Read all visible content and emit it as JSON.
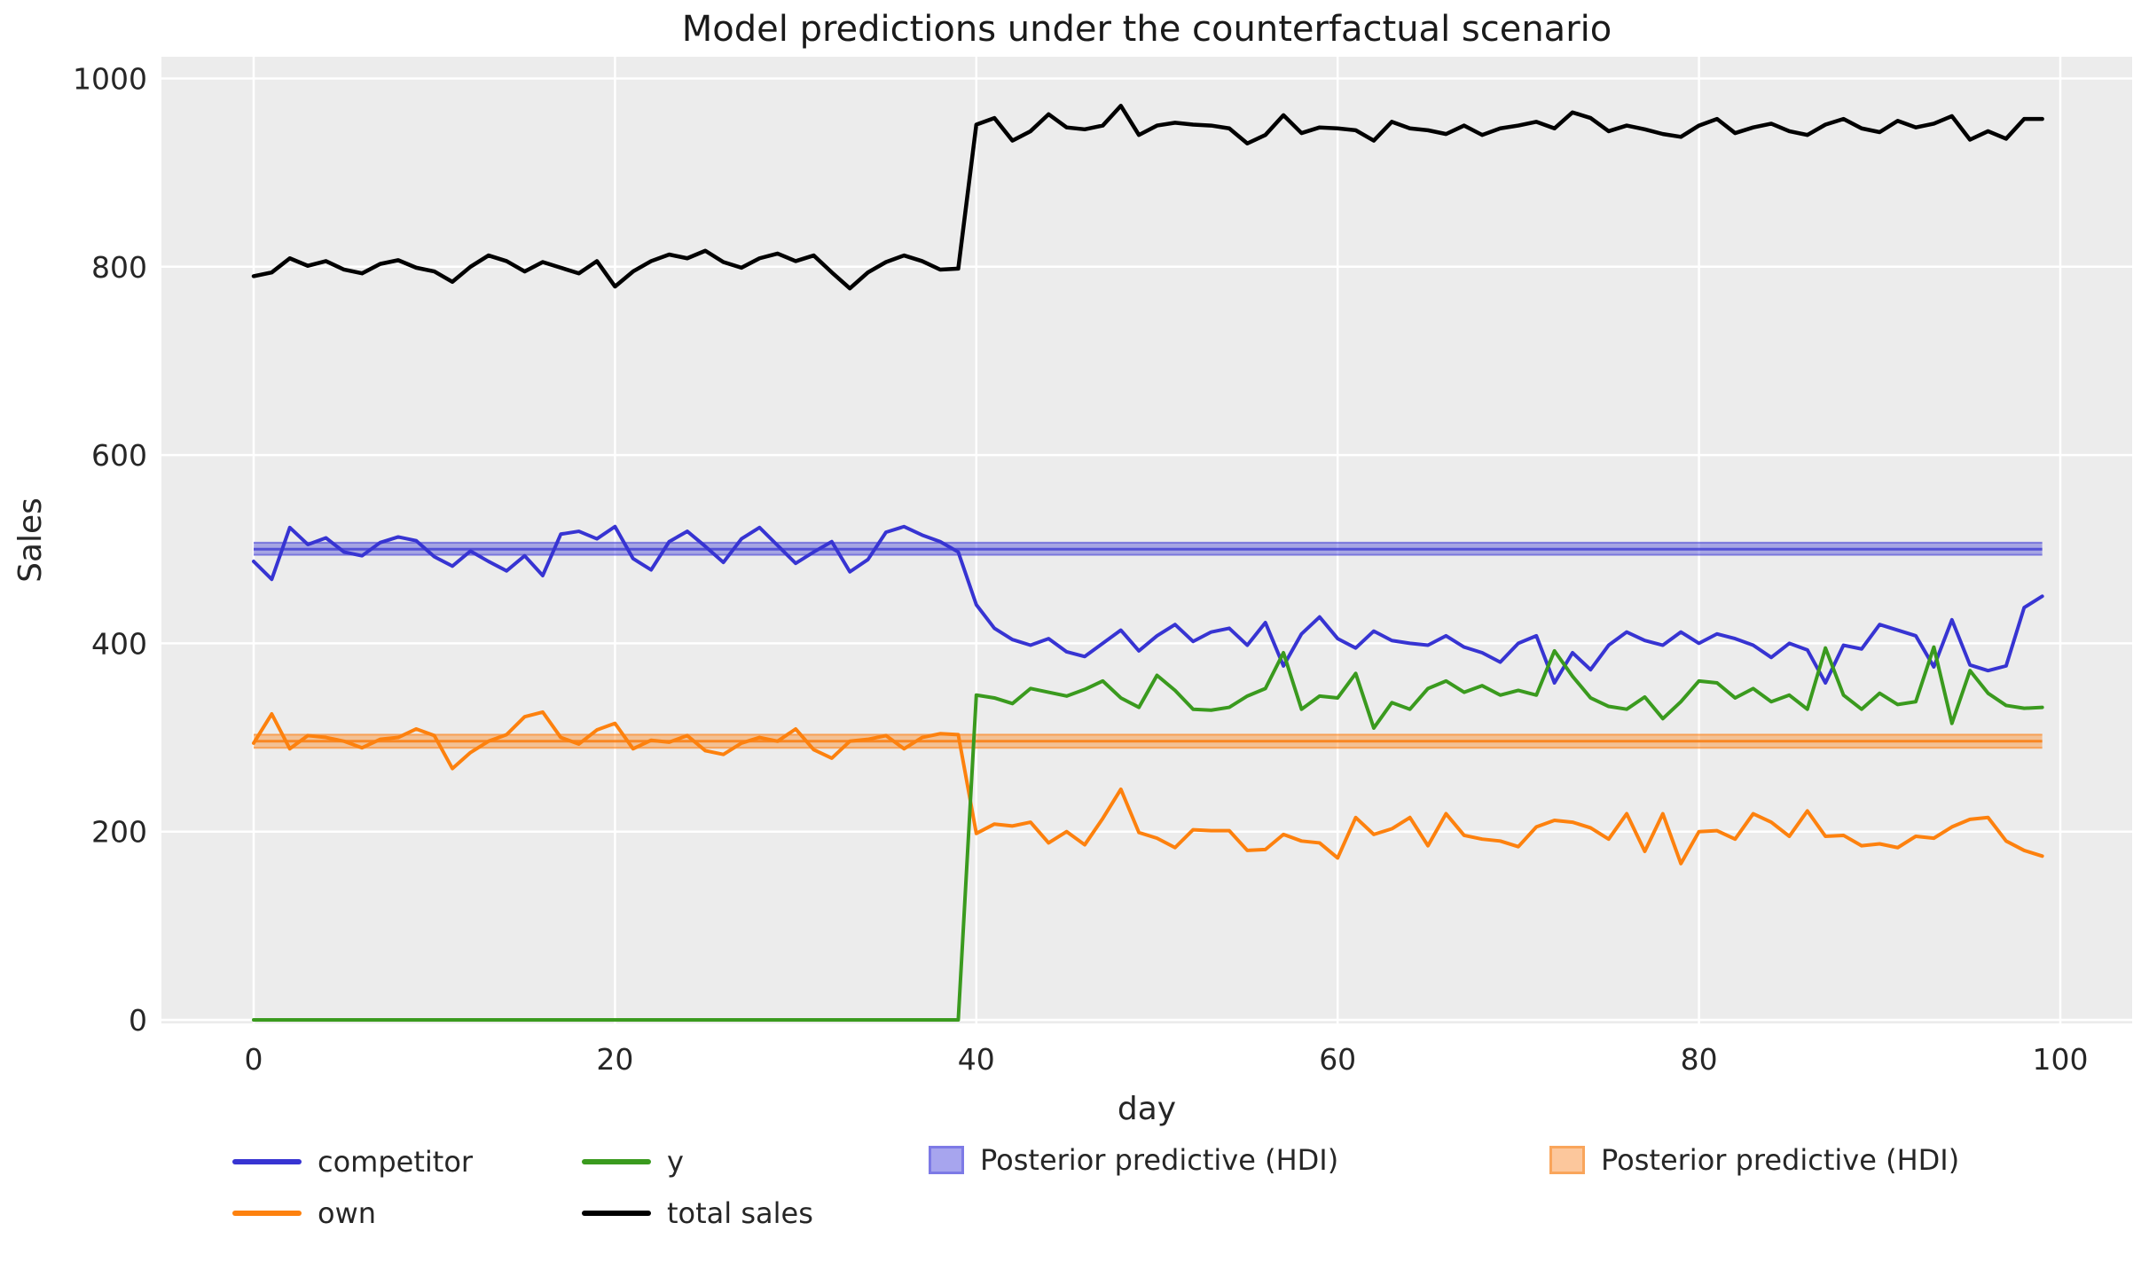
{
  "title": "Model predictions under the counterfactual scenario",
  "colors": {
    "figure_bg": "#ffffff",
    "plot_bg": "#ececec",
    "grid": "#ffffff",
    "text": "#262626",
    "competitor": "#3734d2",
    "own": "#fd810e",
    "y": "#3a9a1e",
    "total": "#000000",
    "hdi_blue_fill": "rgba(62,59,214,0.40)",
    "hdi_blue_edge": "rgba(62,59,214,0.55)",
    "hdi_blue_mean": "rgba(55,52,210,0.75)",
    "hdi_orange_fill": "rgba(253,129,20,0.40)",
    "hdi_orange_edge": "rgba(253,129,20,0.60)",
    "hdi_orange_mean": "rgba(250,125,15,0.85)"
  },
  "legend": {
    "items": [
      {
        "label": "competitor",
        "swatch": "line",
        "color": "#3734d2"
      },
      {
        "label": "own",
        "swatch": "line",
        "color": "#fd810e"
      },
      {
        "label": "y",
        "swatch": "line",
        "color": "#3a9a1e"
      },
      {
        "label": "total sales",
        "swatch": "line",
        "color": "#000000"
      },
      {
        "label": "Posterior predictive (HDI)",
        "swatch": "patch",
        "color": "#a7a5ee"
      },
      {
        "label": "Posterior predictive (HDI)",
        "swatch": "patch",
        "color": "#fcc79c"
      }
    ]
  },
  "chart_data": {
    "type": "line",
    "title": "Model predictions under the counterfactual scenario",
    "xlabel": "day",
    "ylabel": "Sales",
    "xticks": [
      0,
      20,
      40,
      60,
      80,
      100
    ],
    "yticks": [
      0,
      200,
      400,
      600,
      800,
      1000
    ],
    "xlim": [
      -5,
      104
    ],
    "ylim": [
      -4,
      1024
    ],
    "grid": true,
    "legend_position": "below",
    "x": {
      "start": 0,
      "end": 99,
      "step": 1
    },
    "intervention_day": 40,
    "series": [
      {
        "name": "competitor",
        "color": "#3734d2",
        "values": [
          487,
          468,
          523,
          505,
          512,
          497,
          493,
          507,
          513,
          509,
          492,
          482,
          498,
          487,
          477,
          493,
          472,
          516,
          519,
          511,
          524,
          490,
          478,
          508,
          519,
          503,
          486,
          511,
          523,
          504,
          485,
          497,
          508,
          476,
          489,
          518,
          524,
          515,
          508,
          497,
          441,
          416,
          404,
          398,
          405,
          391,
          386,
          400,
          414,
          392,
          408,
          420,
          402,
          412,
          416,
          398,
          422,
          376,
          410,
          428,
          405,
          395,
          413,
          403,
          400,
          398,
          408,
          396,
          390,
          380,
          400,
          408,
          358,
          390,
          372,
          398,
          412,
          403,
          398,
          412,
          400,
          410,
          405,
          398,
          385,
          400,
          393,
          358,
          398,
          394,
          420,
          414,
          408,
          375,
          425,
          377,
          371,
          376,
          438,
          450
        ]
      },
      {
        "name": "own",
        "color": "#fd810e",
        "values": [
          294,
          325,
          288,
          302,
          300,
          296,
          289,
          298,
          300,
          309,
          302,
          267,
          284,
          296,
          303,
          322,
          327,
          300,
          293,
          308,
          315,
          288,
          297,
          295,
          302,
          286,
          282,
          294,
          300,
          296,
          309,
          287,
          278,
          296,
          298,
          302,
          288,
          300,
          304,
          303,
          198,
          208,
          206,
          210,
          188,
          200,
          186,
          214,
          245,
          199,
          193,
          183,
          202,
          201,
          201,
          180,
          181,
          197,
          190,
          188,
          172,
          215,
          197,
          203,
          215,
          185,
          219,
          196,
          192,
          190,
          184,
          205,
          212,
          210,
          204,
          192,
          219,
          179,
          219,
          166,
          200,
          201,
          192,
          219,
          210,
          195,
          222,
          195,
          196,
          185,
          187,
          183,
          195,
          193,
          205,
          213,
          215,
          190,
          180,
          174
        ]
      },
      {
        "name": "y",
        "color": "#3a9a1e",
        "values": [
          0,
          0,
          0,
          0,
          0,
          0,
          0,
          0,
          0,
          0,
          0,
          0,
          0,
          0,
          0,
          0,
          0,
          0,
          0,
          0,
          0,
          0,
          0,
          0,
          0,
          0,
          0,
          0,
          0,
          0,
          0,
          0,
          0,
          0,
          0,
          0,
          0,
          0,
          0,
          0,
          345,
          342,
          336,
          352,
          348,
          344,
          351,
          360,
          342,
          332,
          366,
          350,
          330,
          329,
          332,
          344,
          352,
          390,
          330,
          344,
          342,
          368,
          310,
          337,
          330,
          352,
          360,
          348,
          355,
          345,
          350,
          345,
          392,
          365,
          342,
          333,
          330,
          343,
          320,
          338,
          360,
          358,
          342,
          352,
          338,
          345,
          330,
          395,
          345,
          330,
          347,
          335,
          338,
          396,
          315,
          371,
          347,
          334,
          331,
          332
        ]
      },
      {
        "name": "total sales",
        "color": "#000000",
        "values": [
          790,
          794,
          809,
          801,
          806,
          797,
          793,
          803,
          807,
          799,
          795,
          784,
          800,
          812,
          806,
          795,
          805,
          799,
          793,
          806,
          779,
          795,
          806,
          813,
          809,
          817,
          805,
          799,
          809,
          814,
          806,
          812,
          794,
          777,
          794,
          805,
          812,
          806,
          797,
          798,
          951,
          958,
          934,
          944,
          962,
          948,
          946,
          950,
          971,
          940,
          950,
          953,
          951,
          950,
          947,
          931,
          940,
          961,
          942,
          948,
          947,
          945,
          934,
          954,
          947,
          945,
          941,
          950,
          940,
          947,
          950,
          954,
          947,
          964,
          958,
          944,
          950,
          946,
          941,
          938,
          950,
          957,
          942,
          948,
          952,
          944,
          940,
          951,
          957,
          947,
          943,
          955,
          948,
          952,
          960,
          935,
          944,
          936,
          957,
          957
        ]
      }
    ],
    "bands": [
      {
        "name": "Posterior predictive (HDI)",
        "series": "competitor counterfactual",
        "hdi_low": 494,
        "hdi_high": 507,
        "mean": 500,
        "fill": "rgba(62,59,214,0.40)",
        "edge": "rgba(62,59,214,0.55)",
        "mean_color": "rgba(55,52,210,0.75)"
      },
      {
        "name": "Posterior predictive (HDI)",
        "series": "own counterfactual",
        "hdi_low": 289,
        "hdi_high": 303,
        "mean": 296,
        "fill": "rgba(253,129,20,0.40)",
        "edge": "rgba(253,129,20,0.60)",
        "mean_color": "rgba(250,125,15,0.85)"
      }
    ]
  }
}
